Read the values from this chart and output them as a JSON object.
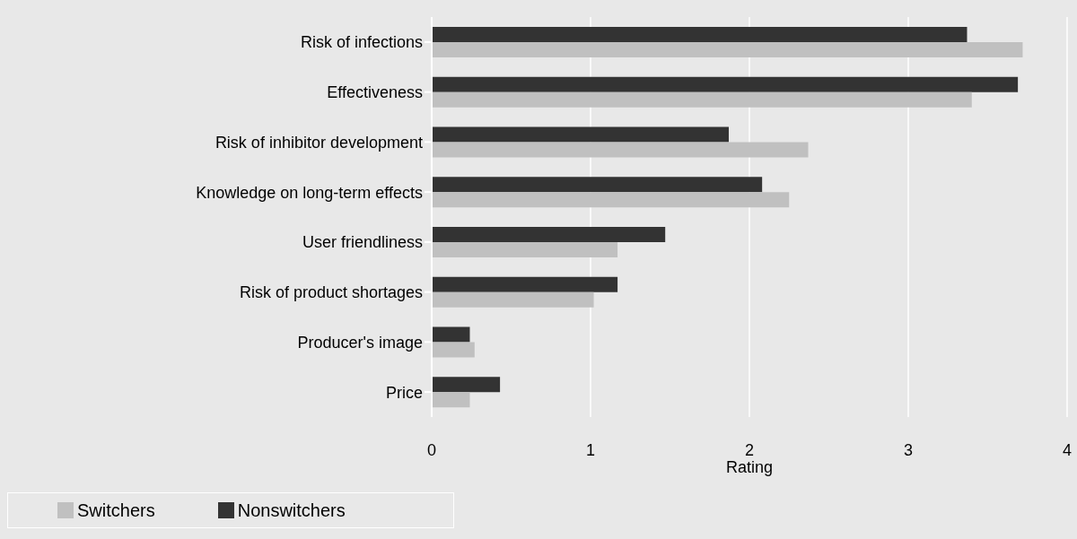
{
  "chart_data": {
    "type": "bar",
    "orientation": "horizontal",
    "xlabel": "Rating",
    "categories": [
      "Risk of infections",
      "Effectiveness",
      "Risk of inhibitor development",
      "Knowledge on long-term effects",
      "User friendliness",
      "Risk of product shortages",
      "Producer's image",
      "Price"
    ],
    "series": [
      {
        "name": "Nonswitchers",
        "color": "#333333",
        "values": [
          3.37,
          3.69,
          1.87,
          2.08,
          1.47,
          1.17,
          0.24,
          0.43
        ]
      },
      {
        "name": "Switchers",
        "color": "#c0c0c0",
        "values": [
          3.72,
          3.4,
          2.37,
          2.25,
          1.17,
          1.02,
          0.27,
          0.24
        ]
      }
    ],
    "xlim": [
      0,
      4
    ],
    "xticks": [
      0,
      1,
      2,
      3,
      4
    ],
    "grid": "x",
    "legend": "bottom left"
  }
}
